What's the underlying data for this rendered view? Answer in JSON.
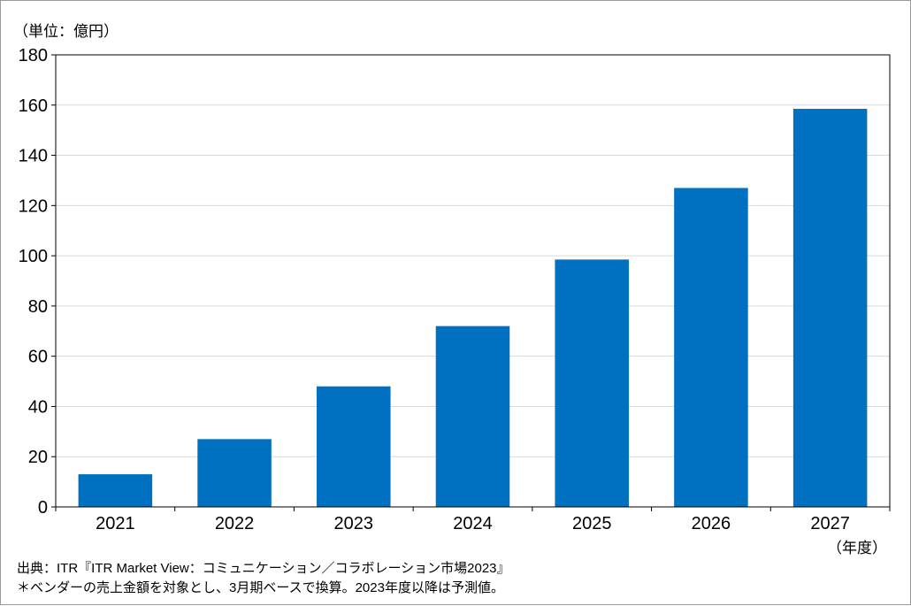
{
  "chart_data": {
    "type": "bar",
    "unit_label": "（単位：億円）",
    "x_unit_label": "（年度）",
    "categories": [
      "2021",
      "2022",
      "2023",
      "2024",
      "2025",
      "2026",
      "2027"
    ],
    "values": [
      13,
      27,
      48,
      72,
      98.5,
      127,
      158.5
    ],
    "ylim": [
      0,
      180
    ],
    "yticks": [
      0,
      20,
      40,
      60,
      80,
      100,
      120,
      140,
      160,
      180
    ],
    "grid": true,
    "bar_color": "#0070c0",
    "grid_color": "#d9d9d9",
    "legend": "none"
  },
  "footer": {
    "source": "出典：ITR『ITR Market View：コミュニケーション／コラボレーション市場2023』",
    "note": "＊ベンダーの売上金額を対象とし、3月期ベースで換算。2023年度以降は予測値。"
  }
}
